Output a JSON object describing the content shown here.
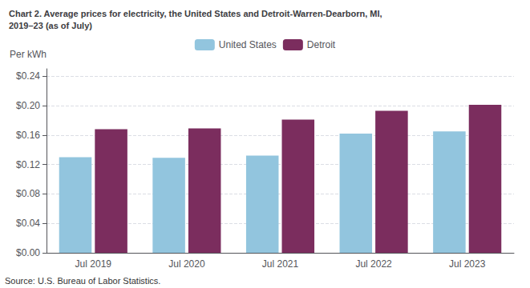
{
  "chart_data": {
    "type": "bar",
    "title": "Chart 2. Average prices for electricity, the United States and Detroit-Warren-Dearborn, MI,\n2019–23 (as of July)",
    "ylabel": "Per kWh",
    "annotations": [
      "Source: U.S. Bureau of Labor Statistics."
    ],
    "categories": [
      "Jul 2019",
      "Jul 2020",
      "Jul 2021",
      "Jul 2022",
      "Jul 2023"
    ],
    "series": [
      {
        "name": "United States",
        "color": "#92C5DE",
        "values": [
          0.13,
          0.129,
          0.132,
          0.162,
          0.165
        ]
      },
      {
        "name": "Detroit",
        "color": "#7B2D5E",
        "values": [
          0.168,
          0.169,
          0.181,
          0.193,
          0.201
        ]
      }
    ],
    "ylim": [
      0,
      0.25
    ],
    "yticks": [
      {
        "value": 0.0,
        "label": "$0.00"
      },
      {
        "value": 0.04,
        "label": "$0.04"
      },
      {
        "value": 0.08,
        "label": "$0.08"
      },
      {
        "value": 0.12,
        "label": "$0.12"
      },
      {
        "value": 0.16,
        "label": "$0.16"
      },
      {
        "value": 0.2,
        "label": "$0.20"
      },
      {
        "value": 0.24,
        "label": "$0.24"
      }
    ],
    "grid": true,
    "legend": "top"
  }
}
